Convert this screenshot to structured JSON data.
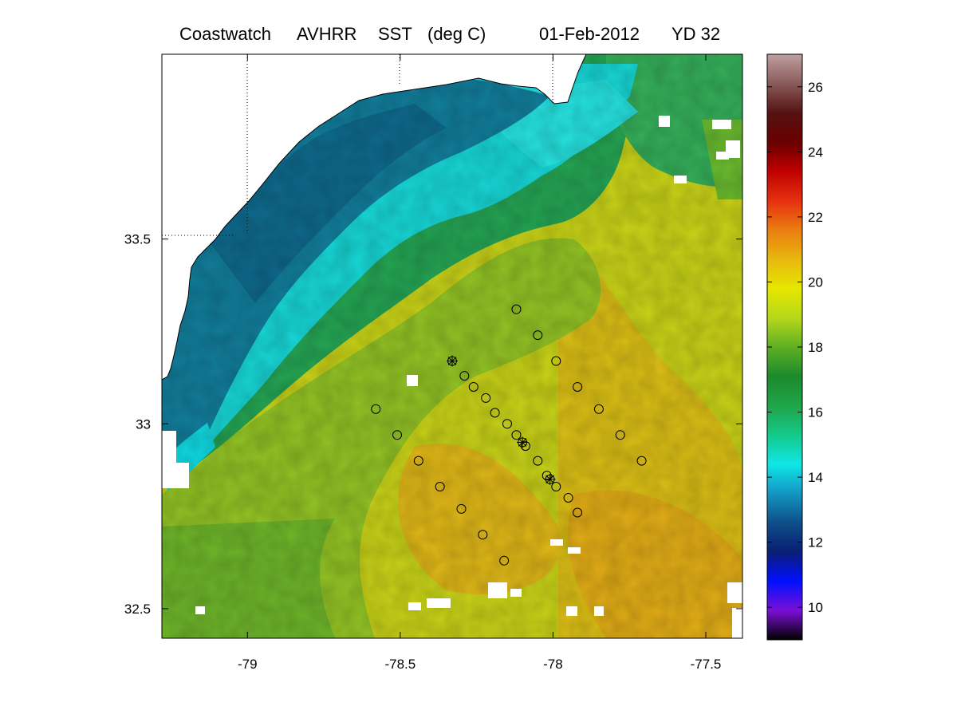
{
  "title": {
    "product": "Coastwatch",
    "sensor": "AVHRR",
    "variable": "SST",
    "units": "(deg C)",
    "date": "01-Feb-2012",
    "yearday": "YD 32"
  },
  "map": {
    "x_ticks": [
      "-79",
      "-78.5",
      "-78",
      "-77.5"
    ],
    "x_tick_values": [
      -79,
      -78.5,
      -78,
      -77.5
    ],
    "y_ticks": [
      "33.5",
      "33",
      "32.5"
    ],
    "y_tick_values": [
      33.5,
      33,
      32.5
    ],
    "lon_range": [
      -79.28,
      -77.38
    ],
    "lat_range": [
      32.42,
      34.0
    ],
    "grid_lines": "dotted",
    "stations_circle": [
      [
        -78.12,
        33.31
      ],
      [
        -78.05,
        33.24
      ],
      [
        -77.99,
        33.17
      ],
      [
        -77.92,
        33.1
      ],
      [
        -77.85,
        33.04
      ],
      [
        -77.78,
        32.97
      ],
      [
        -77.71,
        32.9
      ],
      [
        -78.29,
        33.13
      ],
      [
        -78.26,
        33.1
      ],
      [
        -78.22,
        33.07
      ],
      [
        -78.19,
        33.03
      ],
      [
        -78.15,
        33.0
      ],
      [
        -78.12,
        32.97
      ],
      [
        -78.09,
        32.94
      ],
      [
        -78.05,
        32.9
      ],
      [
        -78.02,
        32.86
      ],
      [
        -77.99,
        32.83
      ],
      [
        -77.95,
        32.8
      ],
      [
        -77.92,
        32.76
      ],
      [
        -78.58,
        33.04
      ],
      [
        -78.51,
        32.97
      ],
      [
        -78.44,
        32.9
      ],
      [
        -78.37,
        32.83
      ],
      [
        -78.3,
        32.77
      ],
      [
        -78.23,
        32.7
      ],
      [
        -78.16,
        32.63
      ]
    ],
    "stations_star": [
      [
        -78.33,
        33.17
      ],
      [
        -78.1,
        32.95
      ],
      [
        -78.01,
        32.85
      ]
    ]
  },
  "colorbar": {
    "ticks": [
      "10",
      "12",
      "14",
      "16",
      "18",
      "20",
      "22",
      "24",
      "26"
    ],
    "tick_values": [
      10,
      12,
      14,
      16,
      18,
      20,
      22,
      24,
      26
    ],
    "range": [
      9,
      27
    ],
    "colors": [
      "#000000",
      "#7a0fd6",
      "#0010ff",
      "#0a1e74",
      "#0d4f88",
      "#1296c2",
      "#10e6e6",
      "#14c989",
      "#1fa548",
      "#1c8a2c",
      "#5fb023",
      "#b6d81a",
      "#e6e600",
      "#e8b70e",
      "#ea7d10",
      "#e63010",
      "#c00000",
      "#6a0000",
      "#551212",
      "#8a5a5a",
      "#bfa0a0"
    ]
  }
}
